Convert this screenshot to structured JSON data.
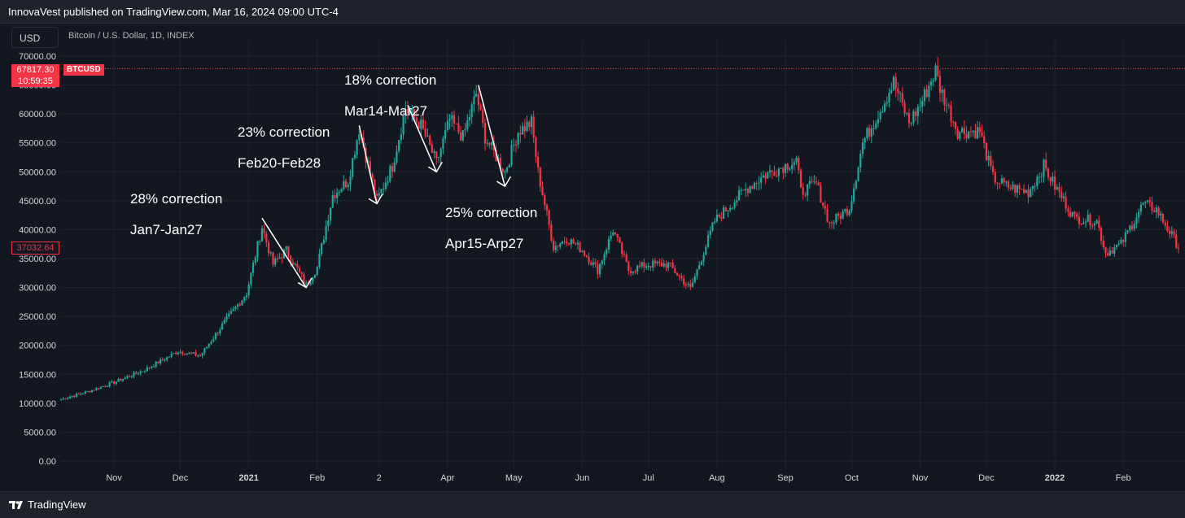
{
  "header": {
    "publisher_text": "InnovaVest published on TradingView.com, Mar 16, 2024 09:00 UTC-4"
  },
  "toolbar": {
    "currency": "USD",
    "symbol_title": "Bitcoin / U.S. Dollar, 1D, INDEX"
  },
  "price_tags": {
    "current_price": "67817.30",
    "countdown": "10:59:35",
    "ticker": "BTCUSD",
    "level": "37032.64",
    "current_value": 67817.3,
    "level_value": 37032.64
  },
  "annotations": {
    "jan": "2̶8̶% correction\nJan7-Jan27",
    "jan_display": "28% correction",
    "jan_dates": "Jan7-Jan27",
    "feb_title": "23% correction",
    "feb_dates": "Feb20-Feb28",
    "mar_title": "18% correction",
    "mar_dates": "Mar14-Mar27",
    "apr_title": "25% correction",
    "apr_dates": "Apr15-Arp27"
  },
  "footer": {
    "brand": "TradingView"
  },
  "colors": {
    "up": "#26a69a",
    "down": "#f23645",
    "background": "#131722",
    "grid": "#1f2430",
    "axis_text": "#d1d4dc",
    "price_line": "#f23645"
  },
  "chart_data": {
    "type": "candlestick",
    "title": "Bitcoin / U.S. Dollar, 1D, INDEX",
    "y_ticks": [
      "70000.00",
      "65000.00",
      "60000.00",
      "55000.00",
      "50000.00",
      "45000.00",
      "40000.00",
      "35000.00",
      "30000.00",
      "25000.00",
      "20000.00",
      "15000.00",
      "10000.00",
      "5000.00",
      "0.00"
    ],
    "ylim": [
      0,
      70000
    ],
    "x_ticks": [
      "Nov",
      "Dec",
      "2021",
      "Feb",
      "2",
      "Apr",
      "May",
      "Jun",
      "Jul",
      "Aug",
      "Sep",
      "Oct",
      "Nov",
      "Dec",
      "2022",
      "Feb"
    ],
    "x_tick_dates": [
      "2020-11-01",
      "2020-12-01",
      "2021-01-01",
      "2021-02-01",
      "2021-03-01",
      "2021-04-01",
      "2021-05-01",
      "2021-06-01",
      "2021-07-01",
      "2021-08-01",
      "2021-09-01",
      "2021-10-01",
      "2021-11-01",
      "2021-12-01",
      "2022-01-01",
      "2022-02-01"
    ],
    "x_range": [
      "2020-10-08",
      "2022-02-26"
    ],
    "closes_keypoints": [
      [
        "2020-10-08",
        10700
      ],
      [
        "2020-10-20",
        12000
      ],
      [
        "2020-11-01",
        13600
      ],
      [
        "2020-11-15",
        15800
      ],
      [
        "2020-11-30",
        19000
      ],
      [
        "2020-12-10",
        18200
      ],
      [
        "2020-12-20",
        23500
      ],
      [
        "2020-12-31",
        29000
      ],
      [
        "2021-01-07",
        40500
      ],
      [
        "2021-01-12",
        34000
      ],
      [
        "2021-01-18",
        36500
      ],
      [
        "2021-01-27",
        30400
      ],
      [
        "2021-02-01",
        33500
      ],
      [
        "2021-02-08",
        46000
      ],
      [
        "2021-02-15",
        48500
      ],
      [
        "2021-02-20",
        57500
      ],
      [
        "2021-02-28",
        45000
      ],
      [
        "2021-03-07",
        51000
      ],
      [
        "2021-03-13",
        61000
      ],
      [
        "2021-03-20",
        58000
      ],
      [
        "2021-03-27",
        51500
      ],
      [
        "2021-04-02",
        59000
      ],
      [
        "2021-04-08",
        56000
      ],
      [
        "2021-04-14",
        63500
      ],
      [
        "2021-04-18",
        56000
      ],
      [
        "2021-04-27",
        50000
      ],
      [
        "2021-05-03",
        57000
      ],
      [
        "2021-05-09",
        58500
      ],
      [
        "2021-05-12",
        50000
      ],
      [
        "2021-05-19",
        37000
      ],
      [
        "2021-05-25",
        38500
      ],
      [
        "2021-06-01",
        36500
      ],
      [
        "2021-06-08",
        33000
      ],
      [
        "2021-06-15",
        40000
      ],
      [
        "2021-06-22",
        33000
      ],
      [
        "2021-07-01",
        34000
      ],
      [
        "2021-07-10",
        34000
      ],
      [
        "2021-07-20",
        29800
      ],
      [
        "2021-07-31",
        41500
      ],
      [
        "2021-08-14",
        47000
      ],
      [
        "2021-08-23",
        49500
      ],
      [
        "2021-09-06",
        52000
      ],
      [
        "2021-09-08",
        46500
      ],
      [
        "2021-09-15",
        48000
      ],
      [
        "2021-09-21",
        41000
      ],
      [
        "2021-09-30",
        43800
      ],
      [
        "2021-10-06",
        55000
      ],
      [
        "2021-10-15",
        61500
      ],
      [
        "2021-10-20",
        65500
      ],
      [
        "2021-10-27",
        58500
      ],
      [
        "2021-11-01",
        61500
      ],
      [
        "2021-11-08",
        67500
      ],
      [
        "2021-11-10",
        64500
      ],
      [
        "2021-11-18",
        57000
      ],
      [
        "2021-11-28",
        57000
      ],
      [
        "2021-12-04",
        49000
      ],
      [
        "2021-12-10",
        47500
      ],
      [
        "2021-12-20",
        46500
      ],
      [
        "2021-12-27",
        51000
      ],
      [
        "2022-01-01",
        47500
      ],
      [
        "2022-01-10",
        42000
      ],
      [
        "2022-01-20",
        41500
      ],
      [
        "2022-01-24",
        36000
      ],
      [
        "2022-01-31",
        37500
      ],
      [
        "2022-02-10",
        44500
      ],
      [
        "2022-02-16",
        43500
      ],
      [
        "2022-02-26",
        37032
      ]
    ]
  }
}
